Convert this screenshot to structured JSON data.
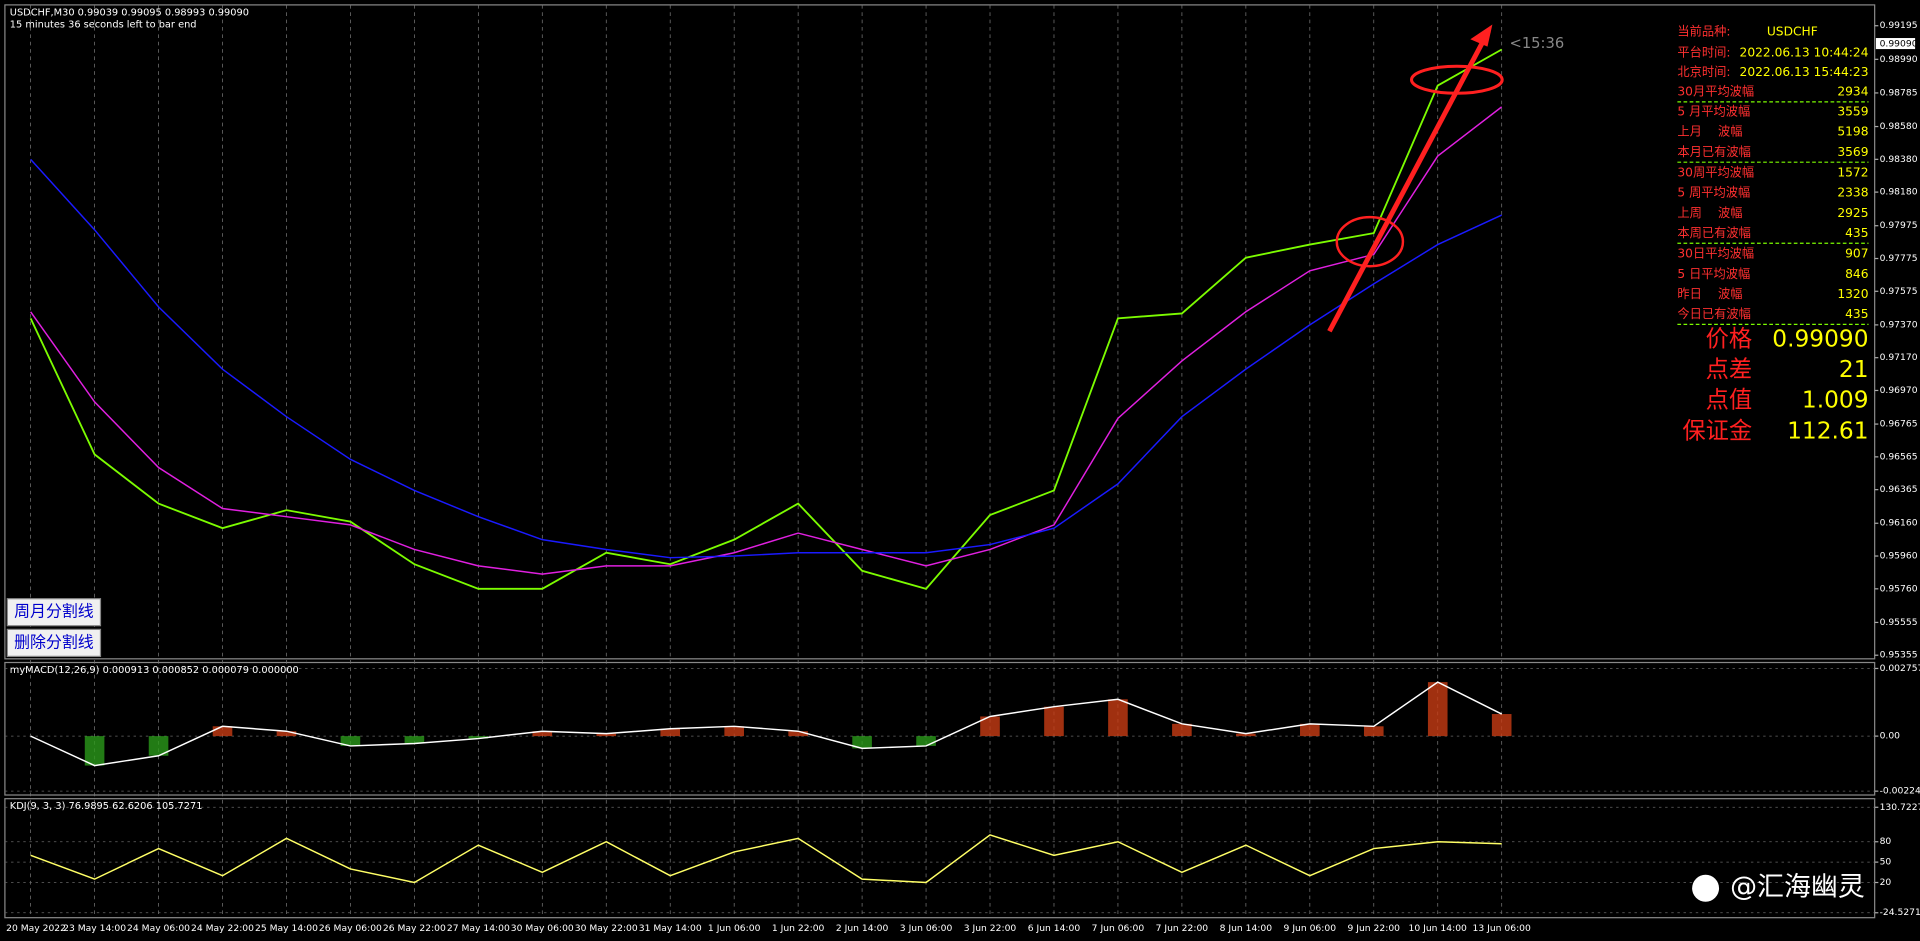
{
  "window": {
    "header": "USDCHF,M30  0.99039 0.99095 0.98993 0.99090",
    "countdown_note": "15 minutes 36 seconds left to bar end",
    "countdown": "<15:36",
    "current_price_tag": "0.99090",
    "buttons": [
      "周月分割线",
      "删除分割线"
    ],
    "watermark": "@汇海幽灵",
    "info_panel": {
      "symbol_label": "当前品种:",
      "symbol": "USDCHF",
      "platform_time_label": "平台时间:",
      "platform_time": "2022.06.13 10:44:24",
      "beijing_time_label": "北京时间:",
      "beijing_time": "2022.06.13 15:44:23",
      "rows": [
        [
          "30月平均波幅",
          "2934"
        ],
        [
          "5 月平均波幅",
          "3559"
        ],
        [
          "上月　 波幅",
          "5198"
        ],
        [
          "本月已有波幅",
          "3569"
        ],
        [
          "30周平均波幅",
          "1572"
        ],
        [
          "5 周平均波幅",
          "2338"
        ],
        [
          "上周　 波幅",
          "2925"
        ],
        [
          "本周已有波幅",
          "435"
        ],
        [
          "30日平均波幅",
          "907"
        ],
        [
          "5 日平均波幅",
          "846"
        ],
        [
          "昨日　 波幅",
          "1320"
        ],
        [
          "今日已有波幅",
          "435"
        ]
      ],
      "big_rows": [
        [
          "价格",
          "0.99090"
        ],
        [
          "点差",
          "21"
        ],
        [
          "点值",
          "1.009"
        ],
        [
          "保证金",
          "112.61"
        ]
      ]
    }
  },
  "chart_data": [
    {
      "type": "line",
      "categories": [
        "20 May 2022",
        "23 May 14:00",
        "24 May 06:00",
        "24 May 22:00",
        "25 May 14:00",
        "26 May 06:00",
        "26 May 22:00",
        "27 May 14:00",
        "30 May 06:00",
        "30 May 22:00",
        "31 May 14:00",
        "1 Jun 06:00",
        "1 Jun 22:00",
        "2 Jun 14:00",
        "3 Jun 06:00",
        "3 Jun 22:00",
        "6 Jun 14:00",
        "7 Jun 06:00",
        "7 Jun 22:00",
        "8 Jun 14:00",
        "9 Jun 06:00",
        "9 Jun 22:00",
        "10 Jun 14:00",
        "13 Jun 06:00"
      ],
      "series": [
        {
          "color": "#7cfc00",
          "values": [
            0.9741,
            0.9658,
            0.9628,
            0.9613,
            0.9624,
            0.9617,
            0.9591,
            0.9576,
            0.9576,
            0.9598,
            0.9591,
            0.9606,
            0.9628,
            0.9587,
            0.9576,
            0.9621,
            0.9636,
            0.9741,
            0.9744,
            0.9778,
            0.9786,
            0.9793,
            0.9883,
            0.9905
          ]
        },
        {
          "color": "#e020e0",
          "values": [
            0.9745,
            0.969,
            0.965,
            0.9625,
            0.962,
            0.9615,
            0.96,
            0.959,
            0.9585,
            0.959,
            0.959,
            0.9598,
            0.961,
            0.96,
            0.959,
            0.96,
            0.9615,
            0.968,
            0.9715,
            0.9745,
            0.977,
            0.978,
            0.984,
            0.987
          ]
        },
        {
          "color": "#1a1aff",
          "values": [
            0.9838,
            0.9795,
            0.9748,
            0.971,
            0.9681,
            0.9655,
            0.9636,
            0.962,
            0.9606,
            0.96,
            0.9595,
            0.9596,
            0.9598,
            0.9598,
            0.9598,
            0.9603,
            0.9613,
            0.964,
            0.9681,
            0.971,
            0.9737,
            0.9762,
            0.9786,
            0.9804
          ]
        }
      ],
      "ylim": [
        0.95333,
        0.99322
      ],
      "yticks": [
        0.99195,
        {
          "value": 0.9899,
          "label": "0.98990"
        },
        0.98785,
        {
          "value": 0.9858,
          "label": "0.98580"
        },
        {
          "value": 0.9838,
          "label": "0.98380"
        },
        {
          "value": 0.9818,
          "label": "0.98180"
        },
        0.97975,
        0.97775,
        0.97575,
        {
          "value": 0.9737,
          "label": "0.97370"
        },
        {
          "value": 0.9717,
          "label": "0.97170"
        },
        {
          "value": 0.9697,
          "label": "0.96970"
        },
        0.96765,
        0.96565,
        0.96365,
        {
          "value": 0.9616,
          "label": "0.96160"
        },
        {
          "value": 0.9596,
          "label": "0.95960"
        },
        {
          "value": 0.9576,
          "label": "0.95760"
        },
        0.95555,
        0.95355
      ]
    },
    {
      "type": "macd",
      "title": "myMACD(12,26,9) 0.000913 0.000852 0.000079 0.000000",
      "series": [
        {
          "color": "#ffffff",
          "values": [
            0,
            -0.0012,
            -0.0008,
            0.0004,
            0.0002,
            -0.0004,
            -0.0003,
            -0.0001,
            0.0002,
            0.0001,
            0.0003,
            0.0004,
            0.0002,
            -0.0005,
            -0.0004,
            0.0008,
            0.0012,
            0.0015,
            0.0005,
            0.0001,
            0.0005,
            0.0004,
            0.0022,
            0.0009
          ]
        }
      ],
      "ylim": [
        -0.0024,
        0.003
      ],
      "yticks": [
        0.002757,
        {
          "value": 0,
          "label": "0.00"
        },
        -0.002243
      ]
    },
    {
      "type": "kdj",
      "title": "KDJ(9, 3, 3) 76.9895 62.6206 105.7271",
      "series": [
        {
          "color": "#ffff66",
          "values": [
            60,
            25,
            70,
            30,
            85,
            40,
            20,
            75,
            35,
            80,
            30,
            65,
            85,
            25,
            20,
            90,
            60,
            80,
            35,
            75,
            30,
            70,
            80,
            77
          ]
        }
      ],
      "ylim": [
        -31.8,
        143.4
      ],
      "yticks": [
        130.7227,
        80,
        50,
        20,
        -24.5271
      ]
    }
  ]
}
